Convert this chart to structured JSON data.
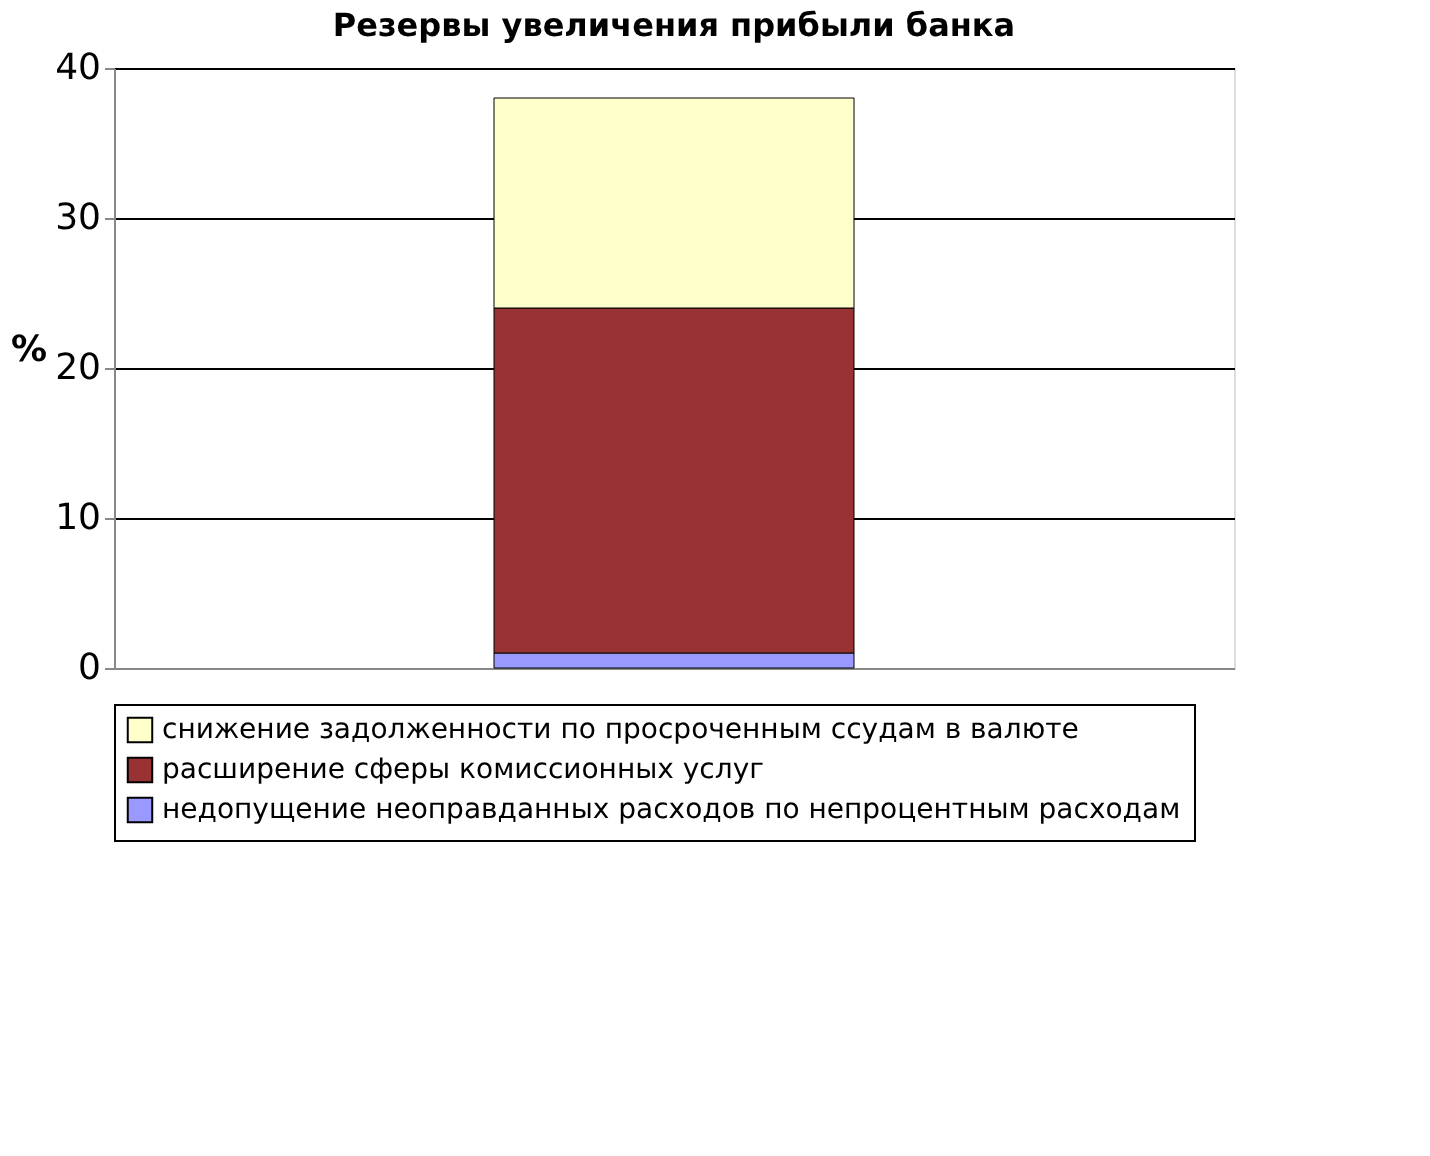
{
  "chart_data": {
    "type": "bar",
    "title": "Резервы увеличения прибыли банка",
    "ylabel": "%",
    "categories": [
      null
    ],
    "stacked": true,
    "series": [
      {
        "name": "недопущение неоправданных расходов по непроцентным расходам",
        "color": "#9999ff",
        "values": [
          1
        ]
      },
      {
        "name": "расширение сферы комиссионных услуг",
        "color": "#993333",
        "values": [
          23
        ]
      },
      {
        "name": "снижение задолженности по просроченным ссудам в валюте",
        "color": "#ffffcc",
        "values": [
          14
        ]
      }
    ],
    "ylim": [
      0,
      40
    ],
    "yticks": [
      0,
      10,
      20,
      30,
      40
    ],
    "grid": "y",
    "legend": "bottom",
    "tick_labels": "y"
  }
}
